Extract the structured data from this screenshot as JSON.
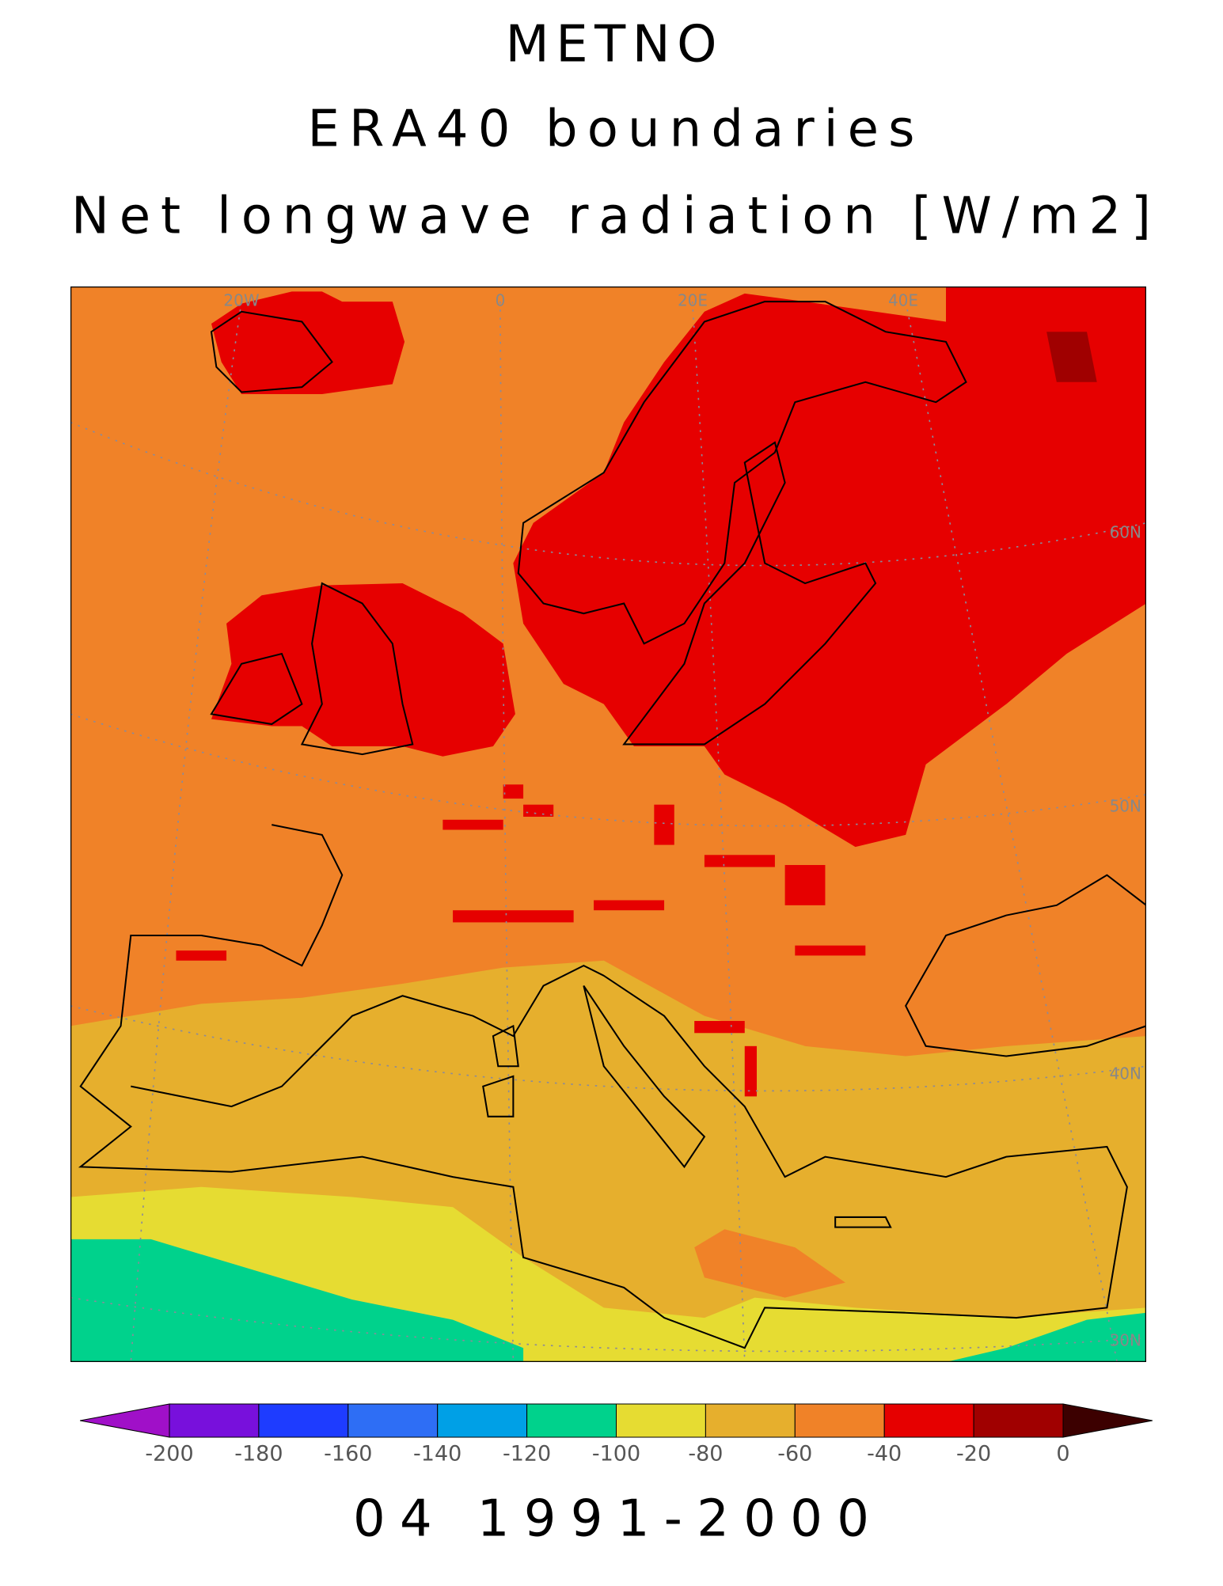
{
  "title_lines": [
    "METNO",
    "ERA40 boundaries",
    "Net longwave radiation [W/m2]"
  ],
  "map": {
    "lon_labels": [
      "20W",
      "0",
      "20E",
      "40E"
    ],
    "lat_labels": [
      "60N",
      "50N",
      "40N",
      "30N"
    ]
  },
  "colorbar": {
    "ticks": [
      -200,
      -180,
      -160,
      -140,
      -120,
      -100,
      -80,
      -60,
      -40,
      -20,
      0
    ],
    "colors": [
      "#a010c8",
      "#7810dc",
      "#1e3cff",
      "#2e6ef5",
      "#00a0e6",
      "#00d28c",
      "#e6dc32",
      "#e6af2d",
      "#f08228",
      "#e60000",
      "#a00000",
      "#3c0000"
    ]
  },
  "footer": "04 1991-2000"
}
